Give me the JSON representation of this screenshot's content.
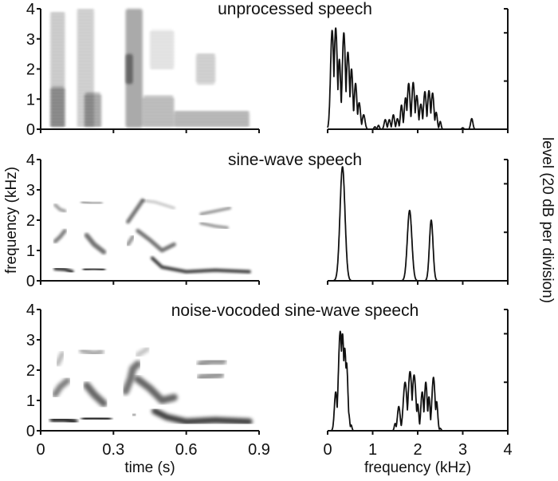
{
  "chart_data": [
    {
      "type": "heatmap",
      "title": "unprocessed speech",
      "panel": "spectrogram",
      "xlabel": "time (s)",
      "ylabel": "frequency (kHz)",
      "xlim": [
        0,
        0.9
      ],
      "ylim": [
        0,
        4
      ],
      "xticks": [
        0,
        0.3,
        0.6,
        0.9
      ],
      "yticks": [
        0,
        1,
        2,
        3,
        4
      ],
      "energy_regions": [
        {
          "t0": 0.04,
          "t1": 0.1,
          "f0": 0.05,
          "f1": 3.9,
          "intensity": 0.55,
          "striated": true
        },
        {
          "t0": 0.04,
          "t1": 0.1,
          "f0": 0.05,
          "f1": 1.4,
          "intensity": 0.85,
          "striated": true
        },
        {
          "t0": 0.15,
          "t1": 0.22,
          "f0": 0.05,
          "f1": 4.0,
          "intensity": 0.5,
          "striated": true
        },
        {
          "t0": 0.18,
          "t1": 0.25,
          "f0": 0.05,
          "f1": 1.2,
          "intensity": 0.9,
          "striated": true
        },
        {
          "t0": 0.35,
          "t1": 0.42,
          "f0": 0.05,
          "f1": 4.0,
          "intensity": 0.55,
          "striated": false
        },
        {
          "t0": 0.35,
          "t1": 0.38,
          "f0": 1.5,
          "f1": 2.5,
          "intensity": 0.75,
          "striated": false
        },
        {
          "t0": 0.42,
          "t1": 0.55,
          "f0": 0.05,
          "f1": 1.1,
          "intensity": 0.7,
          "striated": true
        },
        {
          "t0": 0.55,
          "t1": 0.86,
          "f0": 0.05,
          "f1": 0.6,
          "intensity": 0.75,
          "striated": true
        },
        {
          "t0": 0.64,
          "t1": 0.72,
          "f0": 1.5,
          "f1": 2.5,
          "intensity": 0.5,
          "striated": true
        },
        {
          "t0": 0.45,
          "t1": 0.55,
          "f0": 2.0,
          "f1": 3.3,
          "intensity": 0.3,
          "striated": true
        }
      ]
    },
    {
      "type": "line",
      "title": "unprocessed speech",
      "panel": "spectrum",
      "xlabel": "frequency (kHz)",
      "ylabel": "level (20 dB per division)",
      "xlim": [
        0,
        4
      ],
      "xticks": [
        0,
        1,
        2,
        3,
        4
      ],
      "ylim_divisions": 2.5,
      "peaks": [
        {
          "f": 0.1,
          "level": 2.05,
          "w": 0.035
        },
        {
          "f": 0.18,
          "level": 2.1,
          "w": 0.035
        },
        {
          "f": 0.26,
          "level": 1.45,
          "w": 0.03
        },
        {
          "f": 0.36,
          "level": 2.0,
          "w": 0.035
        },
        {
          "f": 0.45,
          "level": 1.6,
          "w": 0.035
        },
        {
          "f": 0.53,
          "level": 1.25,
          "w": 0.03
        },
        {
          "f": 0.62,
          "level": 0.95,
          "w": 0.03
        },
        {
          "f": 0.7,
          "level": 0.55,
          "w": 0.03
        },
        {
          "f": 0.8,
          "level": 0.3,
          "w": 0.03
        },
        {
          "f": 1.05,
          "level": 0.05,
          "w": 0.02
        },
        {
          "f": 1.13,
          "level": 0.08,
          "w": 0.02
        },
        {
          "f": 1.28,
          "level": 0.2,
          "w": 0.025
        },
        {
          "f": 1.37,
          "level": 0.2,
          "w": 0.025
        },
        {
          "f": 1.46,
          "level": 0.3,
          "w": 0.025
        },
        {
          "f": 1.55,
          "level": 0.22,
          "w": 0.025
        },
        {
          "f": 1.64,
          "level": 0.5,
          "w": 0.025
        },
        {
          "f": 1.73,
          "level": 0.65,
          "w": 0.028
        },
        {
          "f": 1.8,
          "level": 0.95,
          "w": 0.03
        },
        {
          "f": 1.9,
          "level": 0.97,
          "w": 0.03
        },
        {
          "f": 1.98,
          "level": 0.7,
          "w": 0.03
        },
        {
          "f": 2.07,
          "level": 0.52,
          "w": 0.03
        },
        {
          "f": 2.16,
          "level": 0.78,
          "w": 0.03
        },
        {
          "f": 2.25,
          "level": 0.8,
          "w": 0.03
        },
        {
          "f": 2.33,
          "level": 0.75,
          "w": 0.03
        },
        {
          "f": 2.41,
          "level": 0.35,
          "w": 0.025
        },
        {
          "f": 2.5,
          "level": 0.16,
          "w": 0.02
        },
        {
          "f": 3.0,
          "level": 0.03,
          "w": 0.02
        },
        {
          "f": 3.2,
          "level": 0.22,
          "w": 0.025
        }
      ]
    },
    {
      "type": "heatmap",
      "title": "sine-wave speech",
      "panel": "spectrogram",
      "xlabel": "time (s)",
      "ylabel": "frequency (kHz)",
      "xlim": [
        0,
        0.9
      ],
      "ylim": [
        0,
        4
      ],
      "xticks": [
        0,
        0.3,
        0.6,
        0.9
      ],
      "yticks": [
        0,
        1,
        2,
        3,
        4
      ],
      "tracks": [
        {
          "points": [
            [
              0.06,
              0.4
            ],
            [
              0.1,
              0.38
            ],
            [
              0.13,
              0.3
            ]
          ],
          "intensity": 0.9,
          "width": 4
        },
        {
          "points": [
            [
              0.18,
              0.38
            ],
            [
              0.22,
              0.4
            ],
            [
              0.26,
              0.36
            ]
          ],
          "intensity": 0.9,
          "width": 4
        },
        {
          "points": [
            [
              0.06,
              1.3
            ],
            [
              0.08,
              1.45
            ],
            [
              0.1,
              1.65
            ]
          ],
          "intensity": 0.5,
          "width": 5
        },
        {
          "points": [
            [
              0.19,
              1.5
            ],
            [
              0.22,
              1.2
            ],
            [
              0.26,
              0.95
            ]
          ],
          "intensity": 0.55,
          "width": 6
        },
        {
          "points": [
            [
              0.06,
              2.5
            ],
            [
              0.08,
              2.35
            ],
            [
              0.1,
              2.3
            ]
          ],
          "intensity": 0.4,
          "width": 4
        },
        {
          "points": [
            [
              0.17,
              2.6
            ],
            [
              0.21,
              2.55
            ],
            [
              0.25,
              2.55
            ]
          ],
          "intensity": 0.5,
          "width": 3
        },
        {
          "points": [
            [
              0.36,
              1.95
            ],
            [
              0.39,
              2.3
            ],
            [
              0.42,
              2.65
            ]
          ],
          "intensity": 0.55,
          "width": 5
        },
        {
          "points": [
            [
              0.42,
              2.65
            ],
            [
              0.47,
              2.6
            ],
            [
              0.55,
              2.4
            ]
          ],
          "intensity": 0.25,
          "width": 3
        },
        {
          "points": [
            [
              0.36,
              1.2
            ],
            [
              0.38,
              1.45
            ]
          ],
          "intensity": 0.4,
          "width": 5
        },
        {
          "points": [
            [
              0.4,
              1.65
            ],
            [
              0.45,
              1.35
            ],
            [
              0.5,
              1.0
            ],
            [
              0.55,
              1.2
            ]
          ],
          "intensity": 0.55,
          "width": 5
        },
        {
          "points": [
            [
              0.37,
              0.55
            ],
            [
              0.39,
              0.55
            ]
          ],
          "intensity": 0.4,
          "width": 5
        },
        {
          "points": [
            [
              0.46,
              0.75
            ],
            [
              0.5,
              0.45
            ],
            [
              0.6,
              0.3
            ],
            [
              0.72,
              0.35
            ],
            [
              0.86,
              0.3
            ]
          ],
          "intensity": 0.8,
          "width": 4
        },
        {
          "points": [
            [
              0.66,
              2.2
            ],
            [
              0.72,
              2.3
            ],
            [
              0.78,
              2.4
            ]
          ],
          "intensity": 0.5,
          "width": 3
        },
        {
          "points": [
            [
              0.66,
              1.9
            ],
            [
              0.72,
              1.8
            ],
            [
              0.77,
              1.75
            ]
          ],
          "intensity": 0.5,
          "width": 3
        }
      ]
    },
    {
      "type": "line",
      "title": "sine-wave speech",
      "panel": "spectrum",
      "xlabel": "frequency (kHz)",
      "ylabel": "level (20 dB per division)",
      "xlim": [
        0,
        4
      ],
      "xticks": [
        0,
        1,
        2,
        3,
        4
      ],
      "ylim_divisions": 2.5,
      "peaks": [
        {
          "f": 0.33,
          "level": 2.35,
          "w": 0.055,
          "shape": "narrow"
        },
        {
          "f": 1.82,
          "level": 1.45,
          "w": 0.05,
          "shape": "narrow"
        },
        {
          "f": 2.3,
          "level": 1.25,
          "w": 0.04,
          "shape": "narrow"
        }
      ]
    },
    {
      "type": "heatmap",
      "title": "noise-vocoded sine-wave speech",
      "panel": "spectrogram",
      "xlabel": "time (s)",
      "ylabel": "frequency (kHz)",
      "xlim": [
        0,
        0.9
      ],
      "ylim": [
        0,
        4
      ],
      "xticks": [
        0,
        0.3,
        0.6,
        0.9
      ],
      "yticks": [
        0,
        1,
        2,
        3,
        4
      ],
      "tracks": [
        {
          "points": [
            [
              0.05,
              0.38
            ],
            [
              0.1,
              0.38
            ],
            [
              0.14,
              0.3
            ]
          ],
          "intensity": 0.85,
          "width": 8
        },
        {
          "points": [
            [
              0.18,
              0.4
            ],
            [
              0.22,
              0.42
            ],
            [
              0.28,
              0.38
            ]
          ],
          "intensity": 0.85,
          "width": 8
        },
        {
          "points": [
            [
              0.06,
              1.2
            ],
            [
              0.08,
              1.45
            ],
            [
              0.11,
              1.65
            ]
          ],
          "intensity": 0.5,
          "width": 8
        },
        {
          "points": [
            [
              0.19,
              1.5
            ],
            [
              0.22,
              1.2
            ],
            [
              0.26,
              0.9
            ]
          ],
          "intensity": 0.6,
          "width": 9
        },
        {
          "points": [
            [
              0.07,
              2.2
            ],
            [
              0.09,
              2.55
            ]
          ],
          "intensity": 0.3,
          "width": 6
        },
        {
          "points": [
            [
              0.17,
              2.65
            ],
            [
              0.22,
              2.55
            ],
            [
              0.25,
              2.6
            ]
          ],
          "intensity": 0.35,
          "width": 7
        },
        {
          "points": [
            [
              0.35,
              1.3
            ],
            [
              0.37,
              1.7
            ],
            [
              0.38,
              2.05
            ],
            [
              0.4,
              2.2
            ]
          ],
          "intensity": 0.55,
          "width": 9
        },
        {
          "points": [
            [
              0.4,
              2.5
            ],
            [
              0.44,
              2.7
            ]
          ],
          "intensity": 0.25,
          "width": 6
        },
        {
          "points": [
            [
              0.4,
              1.7
            ],
            [
              0.45,
              1.4
            ],
            [
              0.5,
              1.0
            ],
            [
              0.55,
              1.1
            ]
          ],
          "intensity": 0.6,
          "width": 9
        },
        {
          "points": [
            [
              0.38,
              0.5
            ],
            [
              0.39,
              0.55
            ]
          ],
          "intensity": 0.35,
          "width": 7
        },
        {
          "points": [
            [
              0.47,
              0.65
            ],
            [
              0.52,
              0.45
            ],
            [
              0.6,
              0.3
            ],
            [
              0.72,
              0.35
            ],
            [
              0.86,
              0.3
            ]
          ],
          "intensity": 0.75,
          "width": 8
        },
        {
          "points": [
            [
              0.66,
              1.75
            ],
            [
              0.7,
              1.8
            ],
            [
              0.74,
              1.85
            ]
          ],
          "intensity": 0.4,
          "width": 10
        },
        {
          "points": [
            [
              0.66,
              2.2
            ],
            [
              0.7,
              2.3
            ],
            [
              0.75,
              2.3
            ]
          ],
          "intensity": 0.4,
          "width": 10
        }
      ]
    },
    {
      "type": "line",
      "title": "noise-vocoded sine-wave speech",
      "panel": "spectrum",
      "xlabel": "frequency (kHz)",
      "ylabel": "level (20 dB per division)",
      "xlim": [
        0,
        4
      ],
      "xticks": [
        0,
        1,
        2,
        3,
        4
      ],
      "ylim_divisions": 2.5,
      "peaks": [
        {
          "f": 0.18,
          "level": 0.8,
          "w": 0.03
        },
        {
          "f": 0.28,
          "level": 2.05,
          "w": 0.04
        },
        {
          "f": 0.33,
          "level": 2.0,
          "w": 0.035
        },
        {
          "f": 0.38,
          "level": 1.7,
          "w": 0.035
        },
        {
          "f": 0.42,
          "level": 1.4,
          "w": 0.03
        },
        {
          "f": 0.47,
          "level": 0.35,
          "w": 0.02
        },
        {
          "f": 0.52,
          "level": 0.12,
          "w": 0.02
        },
        {
          "f": 1.5,
          "level": 0.15,
          "w": 0.02
        },
        {
          "f": 1.58,
          "level": 0.5,
          "w": 0.03
        },
        {
          "f": 1.72,
          "level": 1.0,
          "w": 0.04
        },
        {
          "f": 1.83,
          "level": 1.22,
          "w": 0.04
        },
        {
          "f": 1.92,
          "level": 1.15,
          "w": 0.04
        },
        {
          "f": 2.0,
          "level": 0.55,
          "w": 0.025
        },
        {
          "f": 2.1,
          "level": 0.8,
          "w": 0.03
        },
        {
          "f": 2.18,
          "level": 1.0,
          "w": 0.03
        },
        {
          "f": 2.25,
          "level": 0.7,
          "w": 0.025
        },
        {
          "f": 2.35,
          "level": 1.1,
          "w": 0.035
        },
        {
          "f": 2.42,
          "level": 0.6,
          "w": 0.025
        },
        {
          "f": 2.5,
          "level": 0.05,
          "w": 0.02
        }
      ]
    }
  ],
  "labels": {
    "title_1": "unprocessed speech",
    "title_2": "sine-wave speech",
    "title_3": "noise-vocoded sine-wave speech",
    "left_ylabel": "frequency (kHz)",
    "right_ylabel": "level (20 dB per division)",
    "left_xlabel": "time (s)",
    "right_xlabel": "frequency (kHz)",
    "yticks": [
      "0",
      "1",
      "2",
      "3",
      "4"
    ],
    "time_ticks": [
      "0",
      "0.3",
      "0.6",
      "0.9"
    ],
    "freq_ticks": [
      "0",
      "1",
      "2",
      "3",
      "4"
    ]
  }
}
